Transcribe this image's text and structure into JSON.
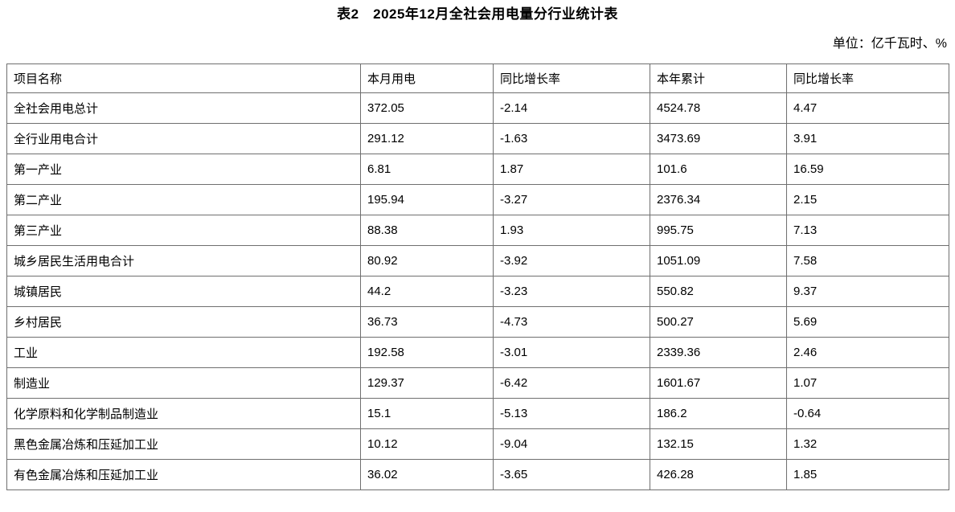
{
  "page": {
    "title": "表2　2025年12月全社会用电量分行业统计表",
    "unit_note": "单位：亿千瓦时、%"
  },
  "colors": {
    "border": "#6f6f6f",
    "text": "#000000",
    "background": "#ffffff"
  },
  "table": {
    "headers": [
      "项目名称",
      "本月用电",
      "同比增长率",
      "本年累计",
      "同比增长率"
    ],
    "rows": [
      {
        "name": "全社会用电总计",
        "month_usage": "372.05",
        "month_yoy": "-2.14",
        "ytd_usage": "4524.78",
        "ytd_yoy": "4.47"
      },
      {
        "name": "全行业用电合计",
        "month_usage": "291.12",
        "month_yoy": "-1.63",
        "ytd_usage": "3473.69",
        "ytd_yoy": "3.91"
      },
      {
        "name": "第一产业",
        "month_usage": "6.81",
        "month_yoy": "1.87",
        "ytd_usage": "101.6",
        "ytd_yoy": "16.59"
      },
      {
        "name": "第二产业",
        "month_usage": "195.94",
        "month_yoy": "-3.27",
        "ytd_usage": "2376.34",
        "ytd_yoy": "2.15"
      },
      {
        "name": "第三产业",
        "month_usage": "88.38",
        "month_yoy": "1.93",
        "ytd_usage": "995.75",
        "ytd_yoy": "7.13"
      },
      {
        "name": "城乡居民生活用电合计",
        "month_usage": "80.92",
        "month_yoy": "-3.92",
        "ytd_usage": "1051.09",
        "ytd_yoy": "7.58"
      },
      {
        "name": "城镇居民",
        "month_usage": "44.2",
        "month_yoy": "-3.23",
        "ytd_usage": "550.82",
        "ytd_yoy": "9.37"
      },
      {
        "name": "乡村居民",
        "month_usage": "36.73",
        "month_yoy": "-4.73",
        "ytd_usage": "500.27",
        "ytd_yoy": "5.69"
      },
      {
        "name": "工业",
        "month_usage": "192.58",
        "month_yoy": "-3.01",
        "ytd_usage": "2339.36",
        "ytd_yoy": "2.46"
      },
      {
        "name": "制造业",
        "month_usage": "129.37",
        "month_yoy": "-6.42",
        "ytd_usage": "1601.67",
        "ytd_yoy": "1.07"
      },
      {
        "name": "化学原料和化学制品制造业",
        "month_usage": "15.1",
        "month_yoy": "-5.13",
        "ytd_usage": "186.2",
        "ytd_yoy": "-0.64"
      },
      {
        "name": "黑色金属冶炼和压延加工业",
        "month_usage": "10.12",
        "month_yoy": "-9.04",
        "ytd_usage": "132.15",
        "ytd_yoy": "1.32"
      },
      {
        "name": "有色金属冶炼和压延加工业",
        "month_usage": "36.02",
        "month_yoy": "-3.65",
        "ytd_usage": "426.28",
        "ytd_yoy": "1.85"
      }
    ]
  }
}
